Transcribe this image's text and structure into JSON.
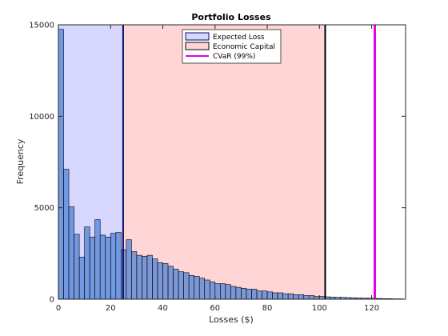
{
  "chart_data": {
    "type": "bar",
    "title": "Portfolio Losses",
    "xlabel": "Losses ($)",
    "ylabel": "Frequency",
    "xlim": [
      0,
      133
    ],
    "ylim": [
      0,
      15000
    ],
    "xticks": [
      0,
      20,
      40,
      60,
      80,
      100,
      120
    ],
    "yticks": [
      0,
      5000,
      10000,
      15000
    ],
    "bin_width": 2,
    "bins_x": [
      0,
      2,
      4,
      6,
      8,
      10,
      12,
      14,
      16,
      18,
      20,
      22,
      24,
      26,
      28,
      30,
      32,
      34,
      36,
      38,
      40,
      42,
      44,
      46,
      48,
      50,
      52,
      54,
      56,
      58,
      60,
      62,
      64,
      66,
      68,
      70,
      72,
      74,
      76,
      78,
      80,
      82,
      84,
      86,
      88,
      90,
      92,
      94,
      96,
      98,
      100,
      102,
      104,
      106,
      108,
      110,
      112,
      114,
      116,
      118,
      120,
      122,
      124,
      126,
      128,
      130
    ],
    "values": [
      14750,
      7100,
      5050,
      3550,
      2300,
      3950,
      3400,
      4350,
      3500,
      3400,
      3600,
      3650,
      2700,
      3250,
      2600,
      2400,
      2350,
      2400,
      2200,
      2000,
      1950,
      1800,
      1650,
      1500,
      1450,
      1300,
      1250,
      1150,
      1050,
      950,
      850,
      850,
      800,
      700,
      650,
      600,
      550,
      550,
      450,
      450,
      400,
      350,
      350,
      300,
      300,
      250,
      250,
      200,
      200,
      150,
      150,
      130,
      120,
      110,
      100,
      90,
      80,
      70,
      60,
      60,
      50,
      40,
      30,
      30,
      20,
      20
    ],
    "regions": [
      {
        "name": "Expected Loss",
        "from": 0,
        "to": 24.8,
        "color": "#d6d6ff",
        "edge": "#0a0a6e"
      },
      {
        "name": "Economic Capital",
        "from": 24.8,
        "to": 102.2,
        "color": "#ffd5d5",
        "edge": "#000000"
      }
    ],
    "lines": [
      {
        "name": "CVaR (99%)",
        "x": 121.2,
        "color": "#e600e6"
      }
    ],
    "bar_color": "#4a7fd6",
    "legend_position": "top-center",
    "grid": false
  }
}
